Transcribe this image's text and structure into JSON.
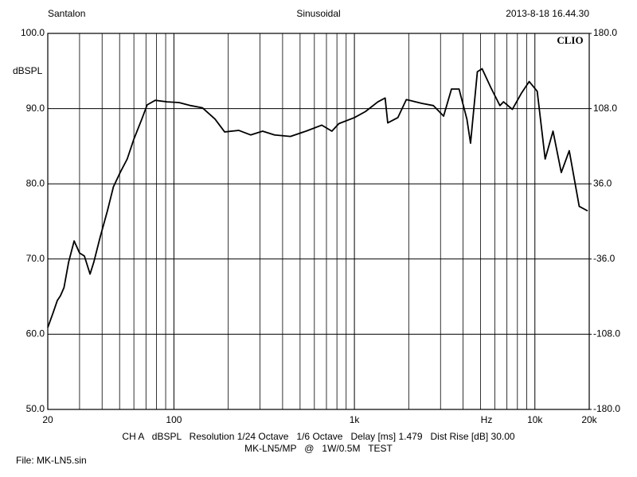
{
  "chart_data": {
    "type": "line",
    "header_left": "Santalon",
    "title": "Sinusoidal",
    "header_right": "2013-8-18 16.44.30",
    "brand": "CLIO",
    "y_label": "dBSPL",
    "x_label": "Hz",
    "footer": [
      "CH A   dBSPL   Resolution 1/24 Octave   1/6 Octave   Delay [ms] 1.479   Dist Rise [dB] 30.00",
      "MK-LN5/MP   @   1W/0.5M   TEST"
    ],
    "file_label": "File: MK-LN5.sin",
    "xscale": "log",
    "xlim": [
      20,
      20000
    ],
    "xticks": [
      20,
      100,
      {
        "value": 1000,
        "label": "1k"
      },
      {
        "value": 10000,
        "label": "10k"
      },
      {
        "value": 20000,
        "label": "20k"
      }
    ],
    "xminor": [
      30,
      40,
      50,
      60,
      70,
      80,
      90,
      200,
      300,
      400,
      500,
      600,
      700,
      800,
      900,
      2000,
      3000,
      4000,
      5000,
      6000,
      7000,
      8000,
      9000
    ],
    "ylim": [
      50,
      100
    ],
    "yticks": [
      {
        "value": 50,
        "label": "50.0"
      },
      {
        "value": 60,
        "label": "60.0"
      },
      {
        "value": 70,
        "label": "70.0"
      },
      {
        "value": 80,
        "label": "80.0"
      },
      {
        "value": 90,
        "label": "90.0"
      },
      {
        "value": 100,
        "label": "100.0"
      }
    ],
    "y2lim": [
      -180,
      180
    ],
    "y2ticks": [
      {
        "value": -180,
        "label": "-180.0"
      },
      {
        "value": -108,
        "label": "-108.0"
      },
      {
        "value": -36,
        "label": "-36.0"
      },
      {
        "value": 36,
        "label": "36.0"
      },
      {
        "value": 108,
        "label": "108.0"
      },
      {
        "value": 180,
        "label": "180.0"
      }
    ],
    "grid": true,
    "series": [
      {
        "name": "CH A",
        "color": "#000000",
        "x": [
          20,
          21.3,
          22.6,
          23.5,
          24.6,
          26.1,
          28,
          30,
          31.9,
          34.3,
          36,
          39,
          42.8,
          46.2,
          50.6,
          55.1,
          59.9,
          66.4,
          71.1,
          78.8,
          91.8,
          106.7,
          124,
          144,
          169,
          191,
          229,
          266,
          310,
          361,
          442,
          539,
          659,
          692,
          750,
          820,
          1000,
          1150,
          1350,
          1480,
          1530,
          1740,
          1940,
          2360,
          2740,
          3120,
          3450,
          3800,
          4200,
          4400,
          4800,
          5100,
          5700,
          6400,
          6700,
          7500,
          8400,
          9300,
          10300,
          11400,
          12600,
          14000,
          15500,
          17600,
          19600
        ],
        "values": [
          60.9,
          62.7,
          64.5,
          65.1,
          66.2,
          69.6,
          72.4,
          70.8,
          70.4,
          68,
          69.6,
          72.9,
          76.4,
          79.6,
          81.6,
          83.3,
          85.9,
          88.6,
          90.5,
          91.1,
          90.9,
          90.8,
          90.4,
          90.1,
          88.6,
          86.9,
          87.1,
          86.5,
          87,
          86.5,
          86.3,
          87,
          87.8,
          87.5,
          87,
          88,
          88.8,
          89.6,
          90.9,
          91.4,
          88.1,
          88.8,
          91.2,
          90.7,
          90.4,
          89,
          92.6,
          92.6,
          88.6,
          85.4,
          94.9,
          95.3,
          92.8,
          90.4,
          90.9,
          89.9,
          92,
          93.6,
          92.3,
          83.3,
          87,
          81.5,
          84.4,
          77,
          76.4
        ]
      }
    ]
  }
}
